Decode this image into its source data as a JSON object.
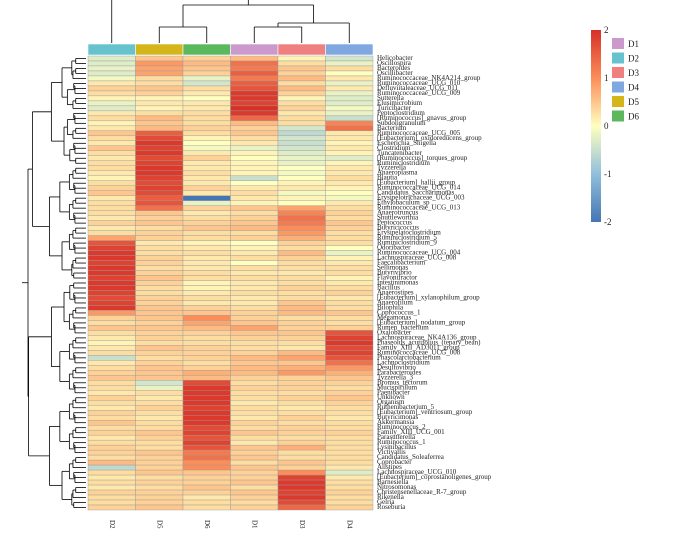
{
  "chart_data": {
    "type": "heatmap",
    "columns": [
      "D2",
      "D5",
      "D6",
      "D1",
      "D3",
      "D4"
    ],
    "column_groups": [
      "D2",
      "D5",
      "D6",
      "D1",
      "D3",
      "D4"
    ],
    "group_legend": [
      {
        "label": "D1",
        "color": "#cc99cc"
      },
      {
        "label": "D2",
        "color": "#66c2cc"
      },
      {
        "label": "D3",
        "color": "#f08080"
      },
      {
        "label": "D4",
        "color": "#7fa8e0"
      },
      {
        "label": "D5",
        "color": "#d4b51a"
      },
      {
        "label": "D6",
        "color": "#5cb85c"
      }
    ],
    "colorbar": {
      "min": -2,
      "max": 2,
      "ticks": [
        "2",
        "1",
        "0",
        "-1",
        "-2"
      ],
      "colors": [
        "#4575b4",
        "#91bfdb",
        "#ffffbf",
        "#fc8d59",
        "#d73027"
      ]
    },
    "rows": [
      "Helicobacter",
      "Oscillospira",
      "Bacteroides",
      "Oscillibacter",
      "Ruminococcaceae_NK4A214_group",
      "Ruminococcaceae_UCG_010",
      "Defluviitaleaceae_UCG_011",
      "Ruminococcaceae_UCG_009",
      "Sutterella",
      "Elusimicrobium",
      "Turicibacter",
      "Peptoclostridium",
      "[Ruminococcus]_gnavus_group",
      "Subdoligranulum",
      "Bacterium",
      "Ruminococcaceae_UCG_005",
      "[Eubacterium]_oxidoreducens_group",
      "Escherichia_Shigella",
      "Clostridium",
      "Tuncatenibacter",
      "[Ruminococcus]_torques_group",
      "Ruminiclostridium",
      "Tyzzerella",
      "Anaeroplasma",
      "Blautia",
      "[Eubacterium]_hallii_group",
      "Ruminococcaceae_UCG_014",
      "Candidatus_Saccharimonas",
      "Erysipelotrichaceae_UCG_003",
      "Ethylobaculum_sp",
      "Ruminococcaceae_UCG_013",
      "Anaerotruncus",
      "Shuttleworthia",
      "Peptococcus",
      "Butyricicoccus",
      "Erysipelatoclostridium",
      "Ruminiclostridium_5",
      "Ruminiclostridium_9",
      "Odoribacter",
      "Ruminococcaceae_UCG_004",
      "Lachnospiraceae_UCG_008",
      "Faecalibacterium",
      "Sellimonas",
      "Butyrivibrio",
      "Flavonifractor",
      "Intestinimonas",
      "Bacillus",
      "Anaerostipes",
      "[Eubacterium]_xylanophilum_group",
      "Anaerofilum",
      "Bilophila",
      "Coprococcus_1",
      "Megamonas",
      "[Eubacterium]_nodatum_group",
      "Rumen_bacterium",
      "Oxalobacter",
      "Lachnospiraceae_NK4A136_group",
      "Phaseolus_acutifolius_(tepary_bean)",
      "Family_XIII_AD3011_group",
      "Ruminococcaceae_UCG_008",
      "Phascolarctobacterium",
      "Lachnoclostridium",
      "Desulfovibrio",
      "Parabacteroides",
      "Tyzzerella_3",
      "Bromus_tectorum",
      "Mucispirillum",
      "Paenibacter",
      "Unknown",
      "Organism",
      "Ruthenibacterium_5",
      "[Eubacterium]_ventriosum_group",
      "Butyricimonas",
      "Akkermansia",
      "Ruminococcus_2",
      "Family_XIII_UCG_001",
      "Parasutterella",
      "Ruminococcus_1",
      "Lysinibacillus",
      "Victivallis",
      "Candidatus_Soleaferrea",
      "Coprobacter",
      "Alistipes",
      "Lachnospiraceae_UCG_010",
      "[Eubacterium]_coprostanoligenes_group",
      "Barnesiella",
      "Nitrosomonas",
      "Christensenellaceae_R-7_group",
      "Rikenella",
      "Gelria",
      "Roseburia"
    ],
    "values": [
      [
        -0.3,
        0.5,
        0.4,
        0.6,
        0.1,
        -0.4
      ],
      [
        -0.3,
        0.9,
        0.6,
        1.3,
        0.3,
        -0.2
      ],
      [
        -0.2,
        0.8,
        0.5,
        1.2,
        0.5,
        0.3
      ],
      [
        -0.3,
        0.8,
        0.4,
        1.5,
        0.4,
        0.0
      ],
      [
        -0.1,
        0.3,
        -0.2,
        1.2,
        0.6,
        0.2
      ],
      [
        0.2,
        0.3,
        -0.4,
        1.5,
        0.3,
        -0.2
      ],
      [
        0.4,
        0.5,
        0.3,
        1.6,
        0.6,
        0.2
      ],
      [
        0.3,
        0.4,
        0.2,
        1.9,
        0.4,
        -0.2
      ],
      [
        0.1,
        0.1,
        0.0,
        1.9,
        0.1,
        -0.3
      ],
      [
        -0.2,
        0.2,
        0.2,
        1.8,
        0.3,
        -0.3
      ],
      [
        -0.3,
        0.1,
        0.2,
        2.0,
        0.4,
        -0.1
      ],
      [
        0.2,
        0.3,
        0.3,
        1.9,
        0.2,
        -0.2
      ],
      [
        0.3,
        0.6,
        0.3,
        1.4,
        0.3,
        -0.5
      ],
      [
        0.1,
        0.5,
        0.3,
        0.6,
        0.3,
        1.1
      ],
      [
        0.2,
        0.6,
        0.4,
        0.4,
        -0.4,
        1.3
      ],
      [
        0.5,
        1.5,
        0.3,
        0.5,
        -0.6,
        0.2
      ],
      [
        0.3,
        1.7,
        0.1,
        0.3,
        -0.4,
        0.2
      ],
      [
        0.2,
        1.9,
        0.0,
        0.2,
        -0.5,
        0.1
      ],
      [
        0.5,
        1.8,
        -0.1,
        -0.2,
        -0.4,
        0.2
      ],
      [
        0.3,
        1.9,
        0.2,
        0.1,
        -0.3,
        0.1
      ],
      [
        0.2,
        1.7,
        0.4,
        0.0,
        -0.2,
        -0.3
      ],
      [
        0.3,
        1.8,
        0.2,
        0.1,
        -0.2,
        0.1
      ],
      [
        0.3,
        1.9,
        0.2,
        0.1,
        0.0,
        0.2
      ],
      [
        0.2,
        1.9,
        0.3,
        0.1,
        -0.1,
        0.2
      ],
      [
        0.1,
        1.8,
        0.2,
        -0.5,
        0.0,
        0.3
      ],
      [
        0.3,
        1.7,
        0.2,
        0.0,
        0.1,
        0.2
      ],
      [
        0.4,
        1.8,
        0.4,
        0.2,
        0.2,
        0.1
      ],
      [
        0.5,
        1.7,
        0.2,
        0.3,
        -0.1,
        0.0
      ],
      [
        0.2,
        1.5,
        -2.0,
        0.2,
        0.1,
        -0.1
      ],
      [
        0.3,
        1.6,
        -0.2,
        0.1,
        0.0,
        0.2
      ],
      [
        0.3,
        1.3,
        0.4,
        0.5,
        0.8,
        0.3
      ],
      [
        0.3,
        0.5,
        0.2,
        0.3,
        1.1,
        0.4
      ],
      [
        0.2,
        0.4,
        0.3,
        0.4,
        1.3,
        0.3
      ],
      [
        0.4,
        0.5,
        0.4,
        0.5,
        1.2,
        0.5
      ],
      [
        0.2,
        0.3,
        0.5,
        0.6,
        1.0,
        0.4
      ],
      [
        0.3,
        0.4,
        0.3,
        0.3,
        0.9,
        0.3
      ],
      [
        0.8,
        0.4,
        0.3,
        0.4,
        0.7,
        0.3
      ],
      [
        1.6,
        0.2,
        0.1,
        0.0,
        0.4,
        0.3
      ],
      [
        1.8,
        0.3,
        0.2,
        0.1,
        0.3,
        0.0
      ],
      [
        1.9,
        0.3,
        0.3,
        0.2,
        0.6,
        -0.2
      ],
      [
        1.9,
        0.4,
        0.2,
        0.3,
        0.4,
        0.1
      ],
      [
        1.8,
        0.4,
        0.2,
        0.0,
        0.3,
        0.2
      ],
      [
        1.9,
        0.3,
        0.2,
        0.3,
        0.3,
        0.3
      ],
      [
        1.9,
        0.4,
        0.3,
        0.2,
        0.2,
        0.3
      ],
      [
        1.8,
        0.5,
        0.3,
        0.3,
        0.3,
        0.1
      ],
      [
        1.9,
        0.4,
        0.1,
        0.2,
        0.3,
        0.2
      ],
      [
        1.9,
        0.3,
        0.1,
        0.2,
        0.4,
        0.3
      ],
      [
        1.8,
        0.3,
        0.2,
        0.3,
        0.3,
        0.4
      ],
      [
        1.7,
        0.4,
        0.3,
        0.2,
        0.3,
        0.2
      ],
      [
        1.8,
        0.4,
        0.2,
        0.2,
        0.5,
        0.3
      ],
      [
        1.9,
        0.5,
        0.4,
        0.3,
        0.6,
        0.3
      ],
      [
        0.9,
        0.5,
        0.5,
        0.4,
        0.6,
        0.5
      ],
      [
        0.4,
        0.5,
        1.0,
        0.4,
        0.3,
        0.3
      ],
      [
        0.3,
        0.4,
        0.8,
        0.5,
        0.4,
        0.3
      ],
      [
        0.5,
        0.5,
        0.6,
        0.8,
        0.4,
        0.4
      ],
      [
        0.3,
        0.4,
        0.4,
        0.5,
        0.5,
        1.6
      ],
      [
        0.2,
        0.4,
        0.3,
        0.4,
        0.4,
        1.8
      ],
      [
        0.1,
        0.3,
        0.3,
        0.3,
        0.3,
        1.9
      ],
      [
        0.2,
        0.5,
        0.4,
        0.3,
        0.2,
        1.7
      ],
      [
        0.3,
        0.4,
        0.4,
        0.4,
        0.6,
        1.8
      ],
      [
        -0.5,
        0.3,
        0.4,
        0.6,
        0.8,
        1.6
      ],
      [
        0.2,
        0.4,
        0.3,
        0.5,
        0.5,
        1.3
      ],
      [
        0.3,
        0.5,
        0.4,
        0.6,
        0.7,
        0.9
      ],
      [
        0.4,
        0.5,
        0.7,
        0.6,
        0.9,
        0.7
      ],
      [
        0.5,
        0.5,
        0.6,
        0.4,
        0.4,
        0.5
      ],
      [
        0.3,
        -0.4,
        1.7,
        0.3,
        0.4,
        0.4
      ],
      [
        0.3,
        -0.2,
        1.9,
        0.4,
        0.4,
        0.3
      ],
      [
        0.2,
        0.3,
        1.9,
        0.3,
        0.3,
        0.4
      ],
      [
        0.4,
        0.2,
        1.9,
        0.3,
        0.4,
        0.5
      ],
      [
        0.3,
        0.3,
        1.9,
        0.2,
        0.3,
        0.4
      ],
      [
        0.2,
        0.4,
        1.8,
        0.3,
        0.2,
        0.3
      ],
      [
        0.4,
        0.3,
        1.9,
        0.3,
        0.3,
        0.3
      ],
      [
        0.3,
        0.2,
        1.9,
        0.2,
        0.4,
        0.2
      ],
      [
        0.5,
        0.3,
        1.9,
        0.4,
        0.3,
        0.3
      ],
      [
        0.3,
        0.3,
        1.7,
        0.3,
        0.4,
        0.3
      ],
      [
        0.4,
        0.5,
        1.8,
        0.5,
        0.4,
        0.4
      ],
      [
        0.2,
        0.4,
        1.6,
        0.3,
        0.3,
        0.3
      ],
      [
        0.3,
        0.3,
        1.8,
        0.2,
        0.4,
        0.3
      ],
      [
        0.4,
        0.3,
        1.6,
        0.5,
        0.7,
        0.3
      ],
      [
        0.4,
        0.5,
        1.2,
        0.4,
        0.3,
        0.3
      ],
      [
        0.3,
        0.4,
        1.3,
        0.5,
        0.3,
        0.3
      ],
      [
        0.6,
        0.4,
        1.0,
        0.3,
        0.5,
        0.3
      ],
      [
        -0.6,
        0.4,
        1.0,
        0.5,
        0.4,
        0.2
      ],
      [
        0.3,
        0.5,
        0.5,
        0.4,
        1.0,
        -0.3
      ],
      [
        0.2,
        0.3,
        0.4,
        0.4,
        1.8,
        0.2
      ],
      [
        0.3,
        0.4,
        0.4,
        0.5,
        1.9,
        0.3
      ],
      [
        0.2,
        0.3,
        0.5,
        0.3,
        1.9,
        0.3
      ],
      [
        0.4,
        0.4,
        0.4,
        0.5,
        1.8,
        0.4
      ],
      [
        0.3,
        0.4,
        0.2,
        0.4,
        1.9,
        0.3
      ],
      [
        0.3,
        0.4,
        0.3,
        0.3,
        1.7,
        0.3
      ],
      [
        0.4,
        0.5,
        0.3,
        0.4,
        1.4,
        0.4
      ]
    ]
  }
}
